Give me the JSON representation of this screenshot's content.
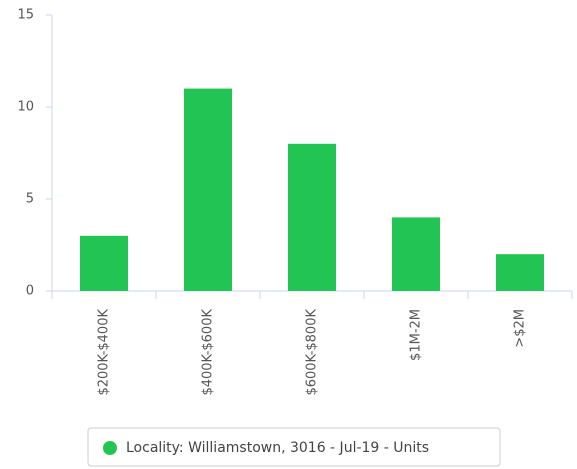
{
  "chart_data": {
    "type": "bar",
    "categories": [
      "$200K-$400K",
      "$400K-$600K",
      "$600K-$800K",
      "$1M-2M",
      ">$2M"
    ],
    "series": [
      {
        "name": "Locality: Williamstown, 3016 - Jul-19 - Units",
        "color": "#22c453",
        "values": [
          3,
          11,
          8,
          4,
          2
        ]
      }
    ],
    "ylim": [
      0,
      15
    ],
    "yticks": [
      0,
      5,
      10,
      15
    ],
    "grid": false,
    "legend": "bottom"
  }
}
